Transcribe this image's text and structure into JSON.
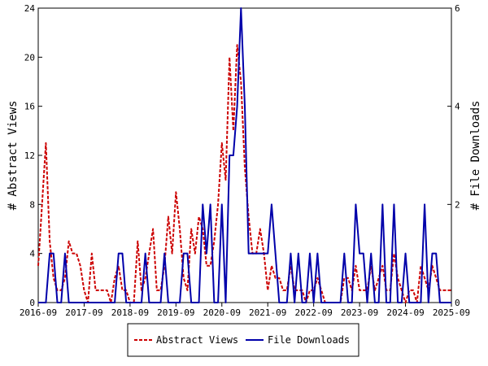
{
  "chart_data": {
    "type": "line",
    "xlabel": "",
    "ylabel_left": "# Abstract Views",
    "ylabel_right": "# File Downloads",
    "ylim_left": [
      0,
      24
    ],
    "ylim_right": [
      0,
      6
    ],
    "y_ticks_left": [
      "0",
      "4",
      "8",
      "12",
      "16",
      "20",
      "24"
    ],
    "y_ticks_right": [
      "0",
      "2",
      "4",
      "6"
    ],
    "x_range": [
      "2016-09",
      "2025-09"
    ],
    "x_ticks": [
      "2016-09",
      "2017-09",
      "2018-09",
      "2019-09",
      "2020-09",
      "2021-09",
      "2022-09",
      "2023-09",
      "2024-09",
      "2025-09"
    ],
    "grid": false,
    "legend_position": "bottom",
    "series": [
      {
        "name": "Abstract Views",
        "axis": "left",
        "color": "#cc0000",
        "style": "dashed",
        "points": [
          [
            "2016-09",
            3
          ],
          [
            "2016-10",
            8
          ],
          [
            "2016-11",
            13
          ],
          [
            "2016-12",
            5
          ],
          [
            "2017-01",
            2
          ],
          [
            "2017-02",
            1
          ],
          [
            "2017-03",
            1
          ],
          [
            "2017-04",
            2
          ],
          [
            "2017-05",
            5
          ],
          [
            "2017-06",
            4
          ],
          [
            "2017-07",
            4
          ],
          [
            "2017-08",
            3
          ],
          [
            "2017-09",
            1
          ],
          [
            "2017-10",
            0
          ],
          [
            "2017-11",
            4
          ],
          [
            "2017-12",
            1
          ],
          [
            "2018-01",
            1
          ],
          [
            "2018-02",
            1
          ],
          [
            "2018-03",
            1
          ],
          [
            "2018-04",
            0
          ],
          [
            "2018-05",
            2
          ],
          [
            "2018-06",
            3
          ],
          [
            "2018-07",
            1
          ],
          [
            "2018-08",
            1
          ],
          [
            "2018-09",
            0
          ],
          [
            "2018-10",
            0
          ],
          [
            "2018-11",
            5
          ],
          [
            "2018-12",
            1
          ],
          [
            "2019-01",
            2
          ],
          [
            "2019-02",
            4
          ],
          [
            "2019-03",
            6
          ],
          [
            "2019-04",
            1
          ],
          [
            "2019-05",
            1
          ],
          [
            "2019-06",
            3
          ],
          [
            "2019-07",
            7
          ],
          [
            "2019-08",
            4
          ],
          [
            "2019-09",
            9
          ],
          [
            "2019-10",
            6
          ],
          [
            "2019-11",
            2
          ],
          [
            "2019-12",
            1
          ],
          [
            "2020-01",
            6
          ],
          [
            "2020-02",
            4
          ],
          [
            "2020-03",
            7
          ],
          [
            "2020-04",
            6
          ],
          [
            "2020-05",
            3
          ],
          [
            "2020-06",
            3
          ],
          [
            "2020-07",
            5
          ],
          [
            "2020-08",
            8
          ],
          [
            "2020-09",
            13
          ],
          [
            "2020-10",
            10
          ],
          [
            "2020-11",
            20
          ],
          [
            "2020-12",
            14
          ],
          [
            "2021-01",
            21
          ],
          [
            "2021-02",
            18
          ],
          [
            "2021-03",
            11
          ],
          [
            "2021-04",
            7
          ],
          [
            "2021-05",
            4
          ],
          [
            "2021-06",
            4
          ],
          [
            "2021-07",
            6
          ],
          [
            "2021-08",
            4
          ],
          [
            "2021-09",
            1
          ],
          [
            "2021-10",
            3
          ],
          [
            "2021-11",
            2
          ],
          [
            "2021-12",
            2
          ],
          [
            "2022-01",
            1
          ],
          [
            "2022-02",
            1
          ],
          [
            "2022-03",
            3
          ],
          [
            "2022-04",
            1
          ],
          [
            "2022-05",
            1
          ],
          [
            "2022-06",
            1
          ],
          [
            "2022-07",
            0
          ],
          [
            "2022-08",
            1
          ],
          [
            "2022-09",
            1
          ],
          [
            "2022-10",
            2
          ],
          [
            "2022-11",
            1
          ],
          [
            "2022-12",
            0
          ],
          [
            "2023-01",
            0
          ],
          [
            "2023-02",
            0
          ],
          [
            "2023-03",
            0
          ],
          [
            "2023-04",
            0
          ],
          [
            "2023-05",
            2
          ],
          [
            "2023-06",
            2
          ],
          [
            "2023-07",
            1
          ],
          [
            "2023-08",
            3
          ],
          [
            "2023-09",
            1
          ],
          [
            "2023-10",
            1
          ],
          [
            "2023-11",
            1
          ],
          [
            "2023-12",
            3
          ],
          [
            "2024-01",
            1
          ],
          [
            "2024-02",
            2
          ],
          [
            "2024-03",
            3
          ],
          [
            "2024-04",
            1
          ],
          [
            "2024-05",
            1
          ],
          [
            "2024-06",
            4
          ],
          [
            "2024-07",
            2
          ],
          [
            "2024-08",
            1
          ],
          [
            "2024-09",
            0
          ],
          [
            "2024-10",
            1
          ],
          [
            "2024-11",
            1
          ],
          [
            "2024-12",
            0
          ],
          [
            "2025-01",
            3
          ],
          [
            "2025-02",
            2
          ],
          [
            "2025-03",
            1
          ],
          [
            "2025-04",
            3
          ],
          [
            "2025-05",
            2
          ],
          [
            "2025-06",
            1
          ],
          [
            "2025-07",
            1
          ],
          [
            "2025-08",
            1
          ],
          [
            "2025-09",
            1
          ]
        ]
      },
      {
        "name": "File Downloads",
        "axis": "right",
        "color": "#0000aa",
        "style": "solid",
        "points": [
          [
            "2016-09",
            0
          ],
          [
            "2016-10",
            0
          ],
          [
            "2016-11",
            0
          ],
          [
            "2016-12",
            1
          ],
          [
            "2017-01",
            1
          ],
          [
            "2017-02",
            0
          ],
          [
            "2017-03",
            0
          ],
          [
            "2017-04",
            1
          ],
          [
            "2017-05",
            0
          ],
          [
            "2017-06",
            0
          ],
          [
            "2017-07",
            0
          ],
          [
            "2017-08",
            0
          ],
          [
            "2017-09",
            0
          ],
          [
            "2017-10",
            0
          ],
          [
            "2017-11",
            0
          ],
          [
            "2017-12",
            0
          ],
          [
            "2018-01",
            0
          ],
          [
            "2018-02",
            0
          ],
          [
            "2018-03",
            0
          ],
          [
            "2018-04",
            0
          ],
          [
            "2018-05",
            0
          ],
          [
            "2018-06",
            1
          ],
          [
            "2018-07",
            1
          ],
          [
            "2018-08",
            0
          ],
          [
            "2018-09",
            0
          ],
          [
            "2018-10",
            0
          ],
          [
            "2018-11",
            0
          ],
          [
            "2018-12",
            0
          ],
          [
            "2019-01",
            1
          ],
          [
            "2019-02",
            0
          ],
          [
            "2019-03",
            0
          ],
          [
            "2019-04",
            0
          ],
          [
            "2019-05",
            0
          ],
          [
            "2019-06",
            1
          ],
          [
            "2019-07",
            0
          ],
          [
            "2019-08",
            0
          ],
          [
            "2019-09",
            0
          ],
          [
            "2019-10",
            0
          ],
          [
            "2019-11",
            1
          ],
          [
            "2019-12",
            1
          ],
          [
            "2020-01",
            0
          ],
          [
            "2020-02",
            0
          ],
          [
            "2020-03",
            0
          ],
          [
            "2020-04",
            2
          ],
          [
            "2020-05",
            1
          ],
          [
            "2020-06",
            2
          ],
          [
            "2020-07",
            0
          ],
          [
            "2020-08",
            0
          ],
          [
            "2020-09",
            2
          ],
          [
            "2020-10",
            0
          ],
          [
            "2020-11",
            3
          ],
          [
            "2020-12",
            3
          ],
          [
            "2021-01",
            4
          ],
          [
            "2021-02",
            6
          ],
          [
            "2021-03",
            4
          ],
          [
            "2021-04",
            1
          ],
          [
            "2021-05",
            1
          ],
          [
            "2021-06",
            1
          ],
          [
            "2021-07",
            1
          ],
          [
            "2021-08",
            1
          ],
          [
            "2021-09",
            1
          ],
          [
            "2021-10",
            2
          ],
          [
            "2021-11",
            1
          ],
          [
            "2021-12",
            0
          ],
          [
            "2022-01",
            0
          ],
          [
            "2022-02",
            0
          ],
          [
            "2022-03",
            1
          ],
          [
            "2022-04",
            0
          ],
          [
            "2022-05",
            1
          ],
          [
            "2022-06",
            0
          ],
          [
            "2022-07",
            0
          ],
          [
            "2022-08",
            1
          ],
          [
            "2022-09",
            0
          ],
          [
            "2022-10",
            1
          ],
          [
            "2022-11",
            0
          ],
          [
            "2022-12",
            0
          ],
          [
            "2023-01",
            0
          ],
          [
            "2023-02",
            0
          ],
          [
            "2023-03",
            0
          ],
          [
            "2023-04",
            0
          ],
          [
            "2023-05",
            1
          ],
          [
            "2023-06",
            0
          ],
          [
            "2023-07",
            0
          ],
          [
            "2023-08",
            2
          ],
          [
            "2023-09",
            1
          ],
          [
            "2023-10",
            1
          ],
          [
            "2023-11",
            0
          ],
          [
            "2023-12",
            1
          ],
          [
            "2024-01",
            0
          ],
          [
            "2024-02",
            0
          ],
          [
            "2024-03",
            2
          ],
          [
            "2024-04",
            0
          ],
          [
            "2024-05",
            0
          ],
          [
            "2024-06",
            2
          ],
          [
            "2024-07",
            0
          ],
          [
            "2024-08",
            0
          ],
          [
            "2024-09",
            1
          ],
          [
            "2024-10",
            0
          ],
          [
            "2024-11",
            0
          ],
          [
            "2024-12",
            0
          ],
          [
            "2025-01",
            0
          ],
          [
            "2025-02",
            2
          ],
          [
            "2025-03",
            0
          ],
          [
            "2025-04",
            1
          ],
          [
            "2025-05",
            1
          ],
          [
            "2025-06",
            0
          ],
          [
            "2025-07",
            0
          ],
          [
            "2025-08",
            0
          ],
          [
            "2025-09",
            0
          ]
        ]
      }
    ]
  }
}
